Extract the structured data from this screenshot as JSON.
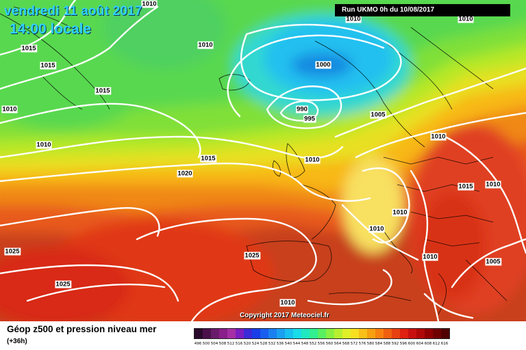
{
  "header": {
    "date": "vendredi 11 août 2017",
    "time": "14:00 locale",
    "run": "Run UKMO 0h du 10/08/2017"
  },
  "footer": {
    "legend_title": "Géop z500 et pression niveau mer",
    "forecast_step": "(+36h)",
    "copyright": "Copyright 2017 Meteociel.fr"
  },
  "legend_scale": {
    "labels": [
      "496",
      "500",
      "504",
      "508",
      "512",
      "516",
      "520",
      "524",
      "528",
      "532",
      "536",
      "540",
      "544",
      "548",
      "552",
      "556",
      "560",
      "564",
      "568",
      "572",
      "576",
      "580",
      "584",
      "588",
      "592",
      "596",
      "600",
      "604",
      "608",
      "612",
      "616"
    ],
    "colors": [
      "#2a0a2a",
      "#4a104a",
      "#6a1a6a",
      "#8a1e8a",
      "#a62ea6",
      "#7a1ec0",
      "#3a2ad8",
      "#1a3ee8",
      "#1a5ef0",
      "#1a80f0",
      "#1aa0f0",
      "#18c0f0",
      "#18dce8",
      "#20e8c0",
      "#30f090",
      "#58f060",
      "#88f040",
      "#b8f030",
      "#e0f028",
      "#f8e020",
      "#f8c018",
      "#f8a010",
      "#f88010",
      "#f06010",
      "#e84010",
      "#e02010",
      "#c81010",
      "#b00808",
      "#900000",
      "#700000",
      "#500000"
    ]
  },
  "map_labels": [
    {
      "text": "1010"
    },
    {
      "text": "1010"
    },
    {
      "text": "1010"
    },
    {
      "text": "1015"
    },
    {
      "text": "1015"
    },
    {
      "text": "1015"
    },
    {
      "text": "1010"
    },
    {
      "text": "1010"
    },
    {
      "text": "1000"
    },
    {
      "text": "990"
    },
    {
      "text": "995"
    },
    {
      "text": "1005"
    },
    {
      "text": "1010"
    },
    {
      "text": "1015"
    },
    {
      "text": "1020"
    },
    {
      "text": "1015"
    },
    {
      "text": "1010"
    },
    {
      "text": "1010"
    },
    {
      "text": "1025"
    },
    {
      "text": "1025"
    },
    {
      "text": "1025"
    },
    {
      "text": "1010"
    },
    {
      "text": "1010"
    },
    {
      "text": "1005"
    },
    {
      "text": "1010"
    },
    {
      "text": "1010"
    },
    {
      "text": "1010"
    }
  ]
}
